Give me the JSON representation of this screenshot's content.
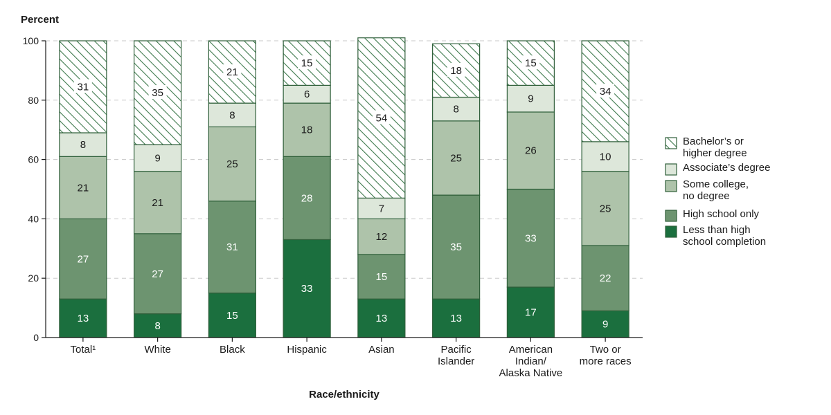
{
  "chart_data": {
    "type": "bar",
    "stacked": true,
    "title": "",
    "ylabel": "Percent",
    "xlabel": "Race/ethnicity",
    "ylim": [
      0,
      100
    ],
    "yticks": [
      0,
      20,
      40,
      60,
      80,
      100
    ],
    "grid": true,
    "legend_position": "right",
    "categories": [
      [
        "Total¹"
      ],
      [
        "White"
      ],
      [
        "Black"
      ],
      [
        "Hispanic"
      ],
      [
        "Asian"
      ],
      [
        "Pacific",
        "Islander"
      ],
      [
        "American",
        "Indian/",
        "Alaska Native"
      ],
      [
        "Two or",
        "more races"
      ]
    ],
    "series": [
      {
        "name": "Less than high school completion",
        "legend_lines": [
          "Less than high",
          "school completion"
        ],
        "color": "#1b6f3e",
        "pattern": "solid",
        "label_color": "#ffffff",
        "values": [
          13,
          8,
          15,
          33,
          13,
          13,
          17,
          9
        ]
      },
      {
        "name": "High school only",
        "legend_lines": [
          "High school only"
        ],
        "color": "#6d9470",
        "pattern": "solid",
        "label_color": "#ffffff",
        "values": [
          27,
          27,
          31,
          28,
          15,
          35,
          33,
          22
        ]
      },
      {
        "name": "Some college, no degree",
        "legend_lines": [
          "Some college,",
          "no degree"
        ],
        "color": "#aec3aa",
        "pattern": "solid",
        "label_color": "#1a1a1a",
        "values": [
          21,
          21,
          25,
          18,
          12,
          25,
          26,
          25
        ]
      },
      {
        "name": "Associate's degree",
        "legend_lines": [
          "Associate’s degree"
        ],
        "color": "#dde7da",
        "pattern": "solid",
        "label_color": "#1a1a1a",
        "values": [
          8,
          9,
          8,
          6,
          7,
          8,
          9,
          10
        ]
      },
      {
        "name": "Bachelor's or higher degree",
        "legend_lines": [
          "Bachelor’s or",
          "higher degree"
        ],
        "color": "#3f7a4e",
        "pattern": "hatch",
        "label_color": "#1a1a1a",
        "values": [
          31,
          35,
          21,
          15,
          54,
          18,
          15,
          34
        ]
      }
    ]
  }
}
